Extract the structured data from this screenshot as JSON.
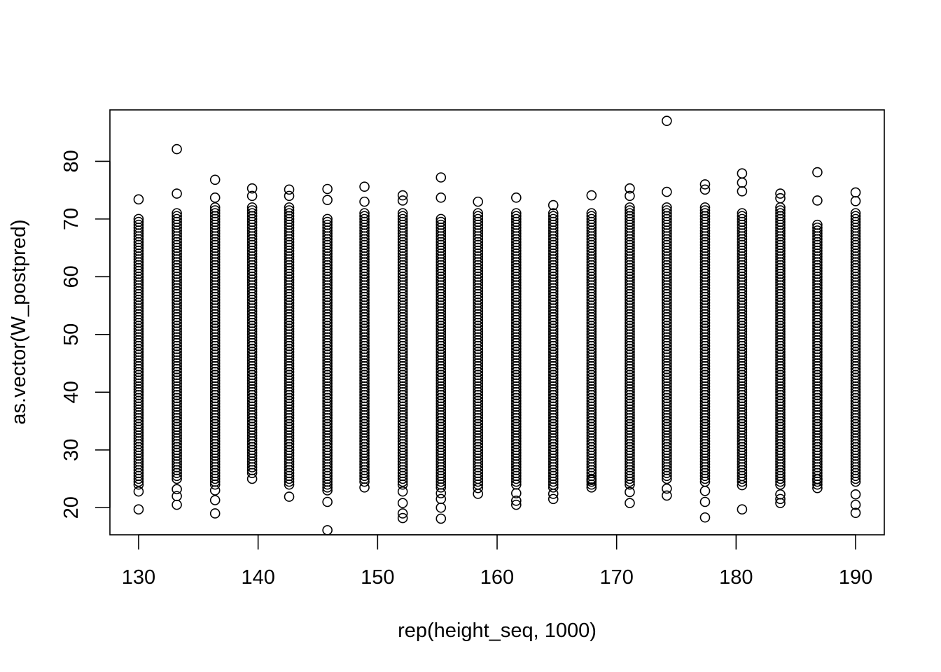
{
  "chart_data": {
    "type": "scatter",
    "title": "",
    "xlabel": "rep(height_seq, 1000)",
    "ylabel": "as.vector(W_postpred)",
    "xlim": [
      127.6,
      192.4
    ],
    "ylim": [
      15.3,
      88.9
    ],
    "x_ticks": [
      130,
      140,
      150,
      160,
      170,
      180,
      190
    ],
    "x_tick_labels": [
      "130",
      "140",
      "150",
      "160",
      "170",
      "180",
      "190"
    ],
    "y_ticks": [
      20,
      30,
      40,
      50,
      60,
      70,
      80
    ],
    "y_tick_labels": [
      "20",
      "30",
      "40",
      "50",
      "60",
      "70",
      "80"
    ],
    "grid": false,
    "marker": "open-circle",
    "series": [
      {
        "x": [
          130.0,
          133.2,
          136.4,
          139.5,
          142.6,
          145.8,
          148.9,
          152.1,
          155.3,
          158.4,
          161.6,
          164.7,
          167.9,
          171.1,
          174.2,
          177.4,
          180.5,
          183.7,
          186.8,
          190.0
        ],
        "dense_min": [
          24.0,
          25.0,
          24.0,
          26.0,
          24.0,
          23.5,
          24.5,
          24.0,
          23.5,
          24.0,
          24.0,
          23.5,
          24.0,
          24.0,
          25.0,
          24.5,
          24.5,
          24.0,
          24.0,
          24.5
        ],
        "dense_max": [
          70.0,
          71.0,
          72.0,
          72.0,
          72.0,
          70.0,
          71.0,
          71.0,
          70.0,
          71.0,
          71.0,
          71.0,
          71.0,
          72.0,
          72.0,
          72.0,
          71.0,
          72.0,
          69.0,
          71.0
        ],
        "outliers": [
          [
            19.7,
            22.8,
            73.4
          ],
          [
            20.5,
            22.0,
            23.2,
            82.1,
            74.4
          ],
          [
            19.0,
            21.3,
            23.0,
            76.8,
            73.7
          ],
          [
            25.0,
            75.3,
            74.0
          ],
          [
            21.9,
            75.1,
            74.0
          ],
          [
            16.1,
            21.0,
            23.0,
            75.2,
            73.3
          ],
          [
            23.5,
            75.6,
            73.0
          ],
          [
            18.2,
            19.0,
            20.8,
            22.8,
            74.1,
            73.2
          ],
          [
            18.1,
            20.0,
            21.5,
            22.5,
            77.2,
            73.7
          ],
          [
            22.4,
            23.4,
            73.0
          ],
          [
            20.5,
            21.2,
            22.5,
            73.7
          ],
          [
            21.5,
            22.4,
            72.4
          ],
          [
            23.5,
            24.8,
            74.1
          ],
          [
            20.8,
            22.7,
            75.3,
            74.0
          ],
          [
            22.1,
            23.3,
            87.0,
            74.7
          ],
          [
            18.3,
            21.0,
            22.9,
            76.0,
            75.1
          ],
          [
            19.7,
            23.9,
            77.9,
            76.3,
            74.8
          ],
          [
            20.8,
            21.5,
            22.3,
            74.4,
            73.6
          ],
          [
            23.4,
            24.9,
            78.1,
            73.2
          ],
          [
            19.1,
            20.5,
            22.3,
            74.6,
            73.1
          ]
        ]
      }
    ]
  }
}
